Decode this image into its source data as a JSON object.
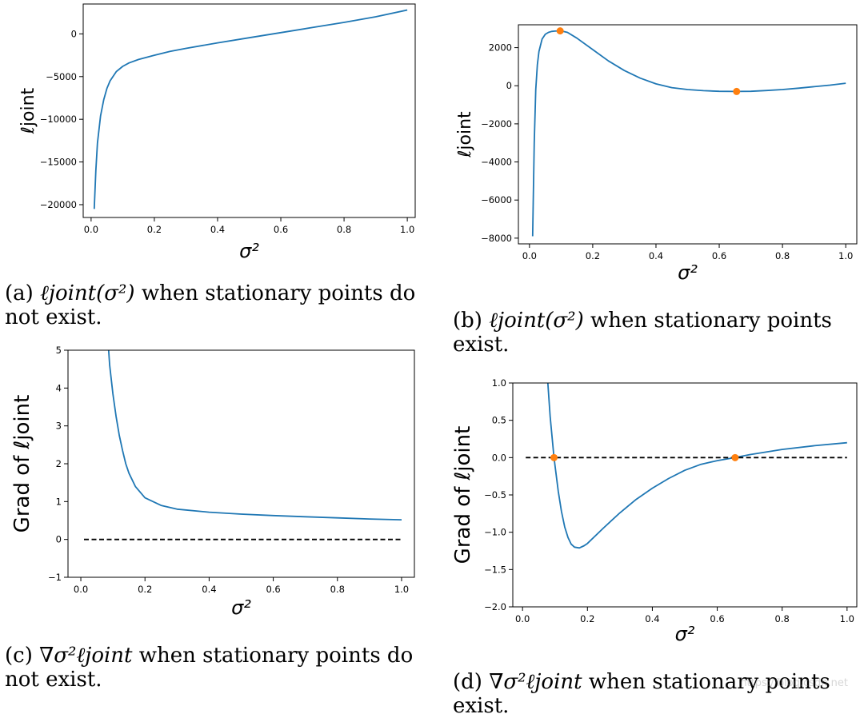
{
  "chart_data": [
    {
      "id": "a",
      "type": "line",
      "xlabel": "σ²",
      "ylabel": "ℓjoint",
      "xlim": [
        -0.025,
        1.025
      ],
      "ylim": [
        -21500,
        3500
      ],
      "xticks": [
        0.0,
        0.2,
        0.4,
        0.6,
        0.8,
        1.0
      ],
      "xtick_labels": [
        "0.0",
        "0.2",
        "0.4",
        "0.6",
        "0.8",
        "1.0"
      ],
      "yticks": [
        0,
        -5000,
        -10000,
        -15000,
        -20000
      ],
      "ytick_labels": [
        "0",
        "−5000",
        "−10000",
        "−15000",
        "−20000"
      ],
      "series": [
        {
          "name": "ℓjoint",
          "color": "#1f77b4",
          "x": [
            0.01,
            0.015,
            0.02,
            0.03,
            0.04,
            0.05,
            0.06,
            0.08,
            0.1,
            0.12,
            0.15,
            0.2,
            0.25,
            0.3,
            0.4,
            0.5,
            0.6,
            0.7,
            0.8,
            0.9,
            1.0
          ],
          "y": [
            -20500,
            -16000,
            -12800,
            -9600,
            -7700,
            -6400,
            -5500,
            -4400,
            -3800,
            -3400,
            -3000,
            -2500,
            -2050,
            -1700,
            -1050,
            -450,
            150,
            750,
            1350,
            2000,
            2800
          ]
        }
      ],
      "caption_label": "(a)",
      "caption_math": "ℓjoint(σ²)",
      "caption_text": "when stationary points do not exist."
    },
    {
      "id": "b",
      "type": "line",
      "xlabel": "σ²",
      "ylabel": "ℓjoint",
      "xlim": [
        -0.035,
        1.035
      ],
      "ylim": [
        -8300,
        3200
      ],
      "xticks": [
        0.0,
        0.2,
        0.4,
        0.6,
        0.8,
        1.0
      ],
      "xtick_labels": [
        "0.0",
        "0.2",
        "0.4",
        "0.6",
        "0.8",
        "1.0"
      ],
      "yticks": [
        2000,
        0,
        -2000,
        -4000,
        -6000,
        -8000
      ],
      "ytick_labels": [
        "2000",
        "0",
        "−2000",
        "−4000",
        "−6000",
        "−8000"
      ],
      "series": [
        {
          "name": "ℓjoint",
          "color": "#1f77b4",
          "x": [
            0.01,
            0.015,
            0.02,
            0.025,
            0.03,
            0.04,
            0.05,
            0.06,
            0.07,
            0.08,
            0.1,
            0.12,
            0.15,
            0.2,
            0.25,
            0.3,
            0.35,
            0.4,
            0.45,
            0.5,
            0.55,
            0.6,
            0.65,
            0.7,
            0.75,
            0.8,
            0.85,
            0.9,
            0.95,
            1.0
          ],
          "y": [
            -7900,
            -3000,
            -200,
            1100,
            1800,
            2450,
            2700,
            2800,
            2850,
            2870,
            2880,
            2800,
            2500,
            1900,
            1300,
            800,
            400,
            100,
            -100,
            -200,
            -260,
            -290,
            -300,
            -290,
            -250,
            -200,
            -130,
            -50,
            30,
            130
          ]
        },
        {
          "name": "stationary points",
          "color": "#ff7f0e",
          "marker": "o",
          "x": [
            0.097,
            0.655
          ],
          "y": [
            2880,
            -300
          ]
        }
      ],
      "caption_label": "(b)",
      "caption_math": "ℓjoint(σ²)",
      "caption_text": "when stationary points exist."
    },
    {
      "id": "c",
      "type": "line",
      "xlabel": "σ²",
      "ylabel": "Grad of ℓjoint",
      "xlim": [
        -0.04,
        1.04
      ],
      "ylim": [
        -1,
        5
      ],
      "xticks": [
        0.0,
        0.2,
        0.4,
        0.6,
        0.8,
        1.0
      ],
      "xtick_labels": [
        "0.0",
        "0.2",
        "0.4",
        "0.6",
        "0.8",
        "1.0"
      ],
      "yticks": [
        5,
        4,
        3,
        2,
        1,
        0,
        -1
      ],
      "ytick_labels": [
        "5",
        "4",
        "3",
        "2",
        "1",
        "0",
        "−1"
      ],
      "series": [
        {
          "name": "Grad of ℓjoint",
          "color": "#1f77b4",
          "x": [
            0.0866,
            0.09,
            0.1,
            0.11,
            0.12,
            0.13,
            0.14,
            0.15,
            0.17,
            0.2,
            0.25,
            0.3,
            0.4,
            0.5,
            0.6,
            0.7,
            0.8,
            0.9,
            1.0
          ],
          "y": [
            5.0,
            4.6,
            3.85,
            3.25,
            2.75,
            2.35,
            2.0,
            1.75,
            1.4,
            1.1,
            0.9,
            0.8,
            0.72,
            0.67,
            0.63,
            0.6,
            0.57,
            0.54,
            0.52
          ]
        },
        {
          "name": "zero line",
          "color": "#000000",
          "dash": true,
          "x": [
            0.01,
            1.0
          ],
          "y": [
            0,
            0
          ]
        }
      ],
      "caption_label": "(c)",
      "caption_math": "∇σ²ℓjoint",
      "caption_text": "when stationary points do not exist."
    },
    {
      "id": "d",
      "type": "line",
      "xlabel": "σ²",
      "ylabel": "Grad of ℓjoint",
      "xlim": [
        -0.03,
        1.03
      ],
      "ylim": [
        -2.0,
        1.0
      ],
      "xticks": [
        0.0,
        0.2,
        0.4,
        0.6,
        0.8,
        1.0
      ],
      "xtick_labels": [
        "0.0",
        "0.2",
        "0.4",
        "0.6",
        "0.8",
        "1.0"
      ],
      "yticks": [
        1.0,
        0.5,
        0.0,
        -0.5,
        -1.0,
        -1.5,
        -2.0
      ],
      "ytick_labels": [
        "1.0",
        "0.5",
        "0.0",
        "−0.5",
        "−1.0",
        "−1.5",
        "−2.0"
      ],
      "series": [
        {
          "name": "Grad of ℓjoint",
          "color": "#1f77b4",
          "x": [
            0.078,
            0.085,
            0.097,
            0.11,
            0.12,
            0.13,
            0.14,
            0.15,
            0.16,
            0.175,
            0.19,
            0.2,
            0.25,
            0.3,
            0.35,
            0.4,
            0.45,
            0.5,
            0.55,
            0.6,
            0.655,
            0.7,
            0.8,
            0.9,
            1.0
          ],
          "y": [
            1.0,
            0.55,
            0.0,
            -0.45,
            -0.72,
            -0.93,
            -1.07,
            -1.16,
            -1.2,
            -1.21,
            -1.18,
            -1.15,
            -0.94,
            -0.74,
            -0.56,
            -0.41,
            -0.28,
            -0.17,
            -0.09,
            -0.04,
            0.0,
            0.04,
            0.11,
            0.16,
            0.2
          ]
        },
        {
          "name": "zero line",
          "color": "#000000",
          "dash": true,
          "x": [
            0.01,
            1.0
          ],
          "y": [
            0,
            0
          ]
        },
        {
          "name": "stationary points",
          "color": "#ff7f0e",
          "marker": "o",
          "x": [
            0.097,
            0.655
          ],
          "y": [
            0,
            0
          ]
        }
      ],
      "caption_label": "(d)",
      "caption_math": "∇σ²ℓjoint",
      "caption_text": "when stationary points exist."
    }
  ],
  "watermark": "https://blog.csdn.net"
}
